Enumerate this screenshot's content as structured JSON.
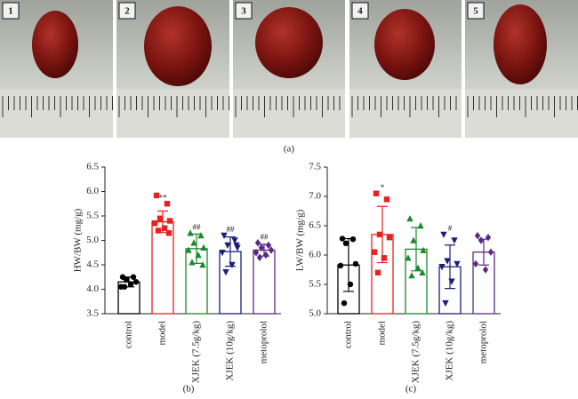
{
  "photo_labels": [
    "1",
    "2",
    "3",
    "4",
    "5"
  ],
  "panel_labels": [
    "(a)",
    "(b)",
    "(c)"
  ],
  "chart_data": [
    {
      "type": "bar",
      "ylabel": "HW/BW (mg/g)",
      "categories": [
        "control",
        "model",
        "XJEK (7.5g/kg)",
        "XJEK (10g/kg)",
        "metoprolol"
      ],
      "values": [
        4.15,
        5.38,
        4.83,
        4.77,
        4.8
      ],
      "errors": [
        0.1,
        0.22,
        0.3,
        0.3,
        0.12
      ],
      "colors": [
        "#000000",
        "#e8201f",
        "#1a8a2e",
        "#1c1f7a",
        "#5a2a82"
      ],
      "markers": [
        "circle",
        "square",
        "triangle-up",
        "triangle-down",
        "diamond"
      ],
      "points": [
        [
          4.25,
          4.25,
          4.2,
          4.15,
          4.05,
          4.1,
          4.05
        ],
        [
          5.92,
          5.75,
          5.45,
          5.4,
          5.35,
          5.25,
          5.2,
          5.15
        ],
        [
          5.15,
          5.1,
          4.95,
          4.85,
          4.8,
          4.7,
          4.55,
          4.5
        ],
        [
          5.1,
          5.0,
          4.9,
          4.85,
          4.75,
          4.5,
          4.35,
          4.9
        ],
        [
          4.95,
          4.9,
          4.85,
          4.8,
          4.75,
          4.7,
          4.65
        ]
      ],
      "annotations": [
        null,
        "**",
        "##",
        "##",
        "##"
      ],
      "ylim": [
        3.5,
        6.5
      ],
      "yticks": [
        3.5,
        {
          "value": 4,
          "label": "4.0"
        },
        4.5,
        {
          "value": 5,
          "label": "5.0"
        },
        5.5,
        {
          "value": 6,
          "label": "6.0"
        },
        6.5
      ]
    },
    {
      "type": "bar",
      "ylabel": "LW/BW (mg/g)",
      "categories": [
        "control",
        "model",
        "XJEK (7.5g/kg)",
        "XJEK (10g/kg)",
        "metoprolol"
      ],
      "values": [
        5.83,
        6.35,
        6.1,
        5.8,
        6.05
      ],
      "errors": [
        0.45,
        0.48,
        0.37,
        0.37,
        0.22
      ],
      "colors": [
        "#000000",
        "#e8201f",
        "#1a8a2e",
        "#1c1f7a",
        "#5a2a82"
      ],
      "markers": [
        "circle",
        "square",
        "triangle-up",
        "triangle-down",
        "diamond"
      ],
      "points": [
        [
          6.28,
          6.27,
          6.2,
          5.85,
          5.82,
          5.5,
          5.18
        ],
        [
          7.05,
          6.95,
          6.35,
          6.3,
          6.05,
          5.95,
          5.7
        ],
        [
          6.62,
          6.5,
          6.25,
          6.08,
          5.95,
          5.78,
          5.65,
          5.7
        ],
        [
          6.35,
          6.25,
          5.9,
          5.85,
          5.8,
          5.55,
          5.18
        ],
        [
          6.33,
          6.3,
          6.25,
          6.05,
          5.85,
          5.75
        ]
      ],
      "annotations": [
        null,
        "*",
        null,
        "#",
        null
      ],
      "ylim": [
        5.0,
        7.5
      ],
      "yticks": [
        {
          "value": 5,
          "label": "5.0"
        },
        5.5,
        {
          "value": 6,
          "label": "6.0"
        },
        6.5,
        {
          "value": 7,
          "label": "7.0"
        },
        7.5
      ]
    }
  ]
}
